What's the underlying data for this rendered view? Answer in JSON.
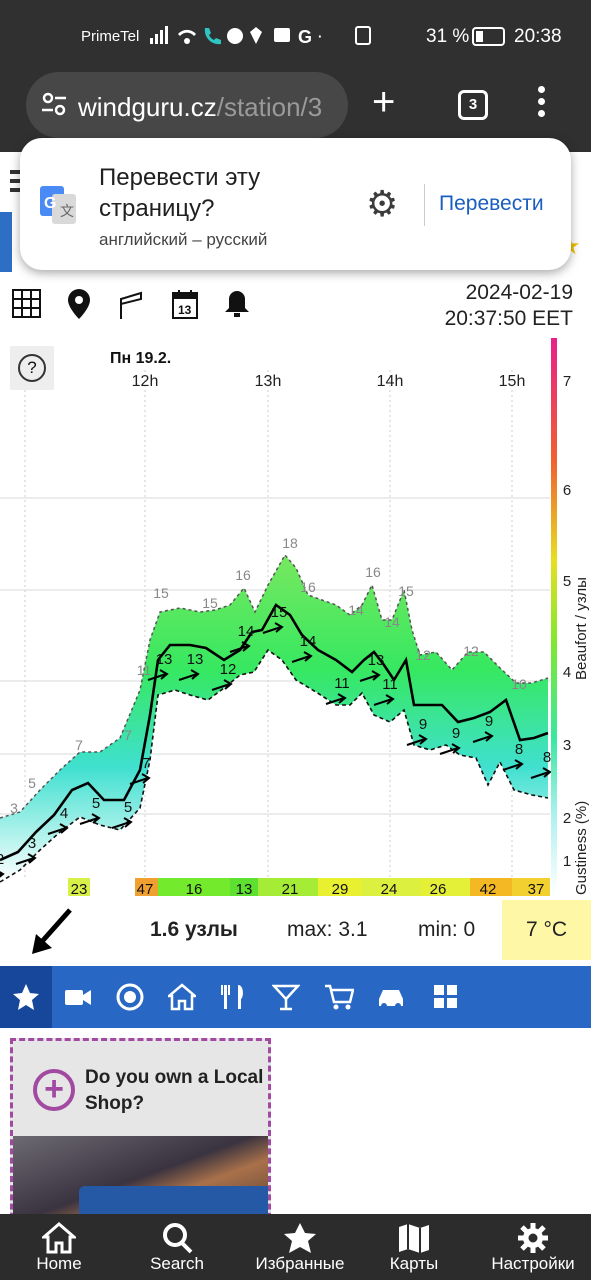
{
  "status_bar": {
    "carrier": "PrimeTel",
    "battery": "31 %",
    "time": "20:38"
  },
  "browser": {
    "url_domain": "windguru.cz",
    "url_path": "/station/3",
    "tab_count": "3"
  },
  "translate_popup": {
    "title": "Перевести эту страницу?",
    "languages": "английский – русский",
    "translate_button": "Перевести"
  },
  "station": {
    "date": "2024-02-19",
    "time": "20:37:50 EET"
  },
  "chart_data": {
    "type": "area",
    "day_label": "Пн 19.2.",
    "x_ticks": [
      "12h",
      "13h",
      "14h",
      "15h"
    ],
    "y_right_ticks": [
      "1",
      "2",
      "3",
      "4",
      "5",
      "6",
      "7"
    ],
    "y_right_label_top": "Beaufort / узлы",
    "y_right_label_bottom": "Gustiness (%)",
    "series": [
      {
        "name": "avg",
        "labels": [
          "2",
          "3",
          "4",
          "5",
          "5",
          "7",
          "13",
          "13",
          "12",
          "14",
          "15",
          "14",
          "11",
          "13",
          "11",
          "9",
          "9",
          "9",
          "8",
          "8"
        ]
      },
      {
        "name": "gust",
        "labels": [
          "3",
          "5",
          "7",
          "7",
          "11",
          "15",
          "15",
          "16",
          "18",
          "16",
          "14",
          "16",
          "14",
          "15",
          "12",
          "12",
          "10"
        ]
      }
    ],
    "gustiness": [
      {
        "value": "23",
        "color": "#d8f048"
      },
      {
        "value": "47",
        "color": "#f0a030"
      },
      {
        "value": "16",
        "color": "#74ea2c"
      },
      {
        "value": "13",
        "color": "#5ee030"
      },
      {
        "value": "21",
        "color": "#a4ec36"
      },
      {
        "value": "29",
        "color": "#e8f030"
      },
      {
        "value": "24",
        "color": "#dcf040"
      },
      {
        "value": "26",
        "color": "#e4f038"
      },
      {
        "value": "42",
        "color": "#f4b824"
      },
      {
        "value": "37",
        "color": "#f2d030"
      }
    ]
  },
  "stats": {
    "current": "1.6 узлы",
    "max": "max: 3.1",
    "min": "min: 0",
    "temperature": "7 °C"
  },
  "ad": {
    "text": "Do you own a Local Shop?"
  },
  "bottom_nav": [
    {
      "label": "Home",
      "icon": "home-icon"
    },
    {
      "label": "Search",
      "icon": "search-icon"
    },
    {
      "label": "Избранные",
      "icon": "star-icon"
    },
    {
      "label": "Карты",
      "icon": "map-icon"
    },
    {
      "label": "Настройки",
      "icon": "gear-icon"
    }
  ]
}
